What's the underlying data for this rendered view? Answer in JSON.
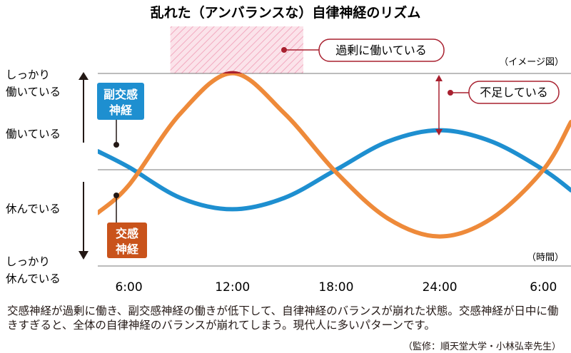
{
  "chart_data": {
    "type": "line",
    "title": "乱れた（アンバランスな）自律神経のリズム",
    "note": "（イメージ図）",
    "xlabel": "（時間）",
    "x_ticks": [
      "6:00",
      "12:00",
      "18:00",
      "24:00",
      "6:00"
    ],
    "y_labels": [
      "しっかり\n働いている",
      "働いている",
      "休んでいる",
      "しっかり\n休んでいる"
    ],
    "xlim_hours": [
      4.2,
      31.6
    ],
    "series": [
      {
        "name": "副交感神経",
        "color": "#1e8fd0",
        "x": [
          4.2,
          6,
          9,
          12,
          15,
          18,
          21,
          24,
          27,
          30,
          31.6
        ],
        "y": [
          0.36,
          0.05,
          -0.55,
          -0.77,
          -0.55,
          0.0,
          0.55,
          0.77,
          0.55,
          0.0,
          -0.4
        ]
      },
      {
        "name": "交感神経",
        "color": "#ee8a3a",
        "excess_color": "#a8202f",
        "x": [
          4.2,
          6,
          9,
          12,
          15,
          18,
          21,
          24,
          27,
          30,
          31.6
        ],
        "y": [
          -0.84,
          -0.3,
          1.1,
          1.88,
          1.1,
          -0.05,
          -0.95,
          -1.3,
          -0.95,
          0.0,
          0.93
        ]
      }
    ],
    "annotations": {
      "excess": "過剰に働いている",
      "deficit": "不足している",
      "parasympathetic_tag": "副交感\n神経",
      "sympathetic_tag": "交感\n神経"
    },
    "excess_band_hours": [
      8.4,
      16.1
    ]
  },
  "caption": "交感神経が過剰に働き、副交感神経の働きが低下して、自律神経のバランスが崩れた状態。交感神経が日中に働きすぎると、全体の自律神経のバランスが崩れてしまう。現代人に多いパターンです。",
  "credit": "（監修：順天堂大学・小林弘幸先生）"
}
